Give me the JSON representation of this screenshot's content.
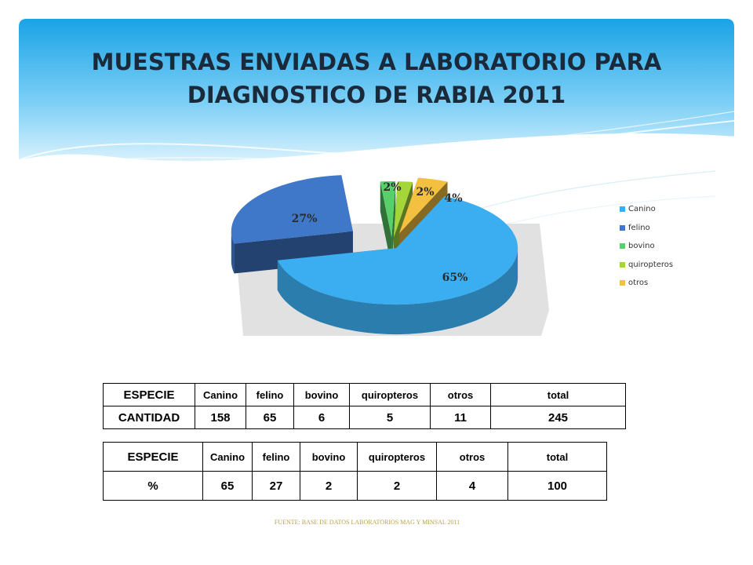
{
  "title": {
    "line1": "MUESTRAS ENVIADAS A LABORATORIO PARA",
    "line2": "DIAGNOSTICO DE RABIA 2011"
  },
  "chart_data": {
    "type": "pie",
    "style": "3d-exploded",
    "categories": [
      "Canino",
      "felino",
      "bovino",
      "quiropteros",
      "otros"
    ],
    "values": [
      65,
      27,
      2,
      2,
      4
    ],
    "labels": [
      "65%",
      "27%",
      "2%",
      "2%",
      "4%"
    ],
    "colors": [
      "#3aaef0",
      "#3f78c9",
      "#57d06a",
      "#a4d63a",
      "#f3c040"
    ],
    "legend_position": "right"
  },
  "legend": {
    "items": [
      {
        "label": "Canino",
        "color": "#3aaef0"
      },
      {
        "label": "felino",
        "color": "#3f78c9"
      },
      {
        "label": "bovino",
        "color": "#57d06a"
      },
      {
        "label": "quiropteros",
        "color": "#a4d63a"
      },
      {
        "label": "otros",
        "color": "#f3c040"
      }
    ]
  },
  "table1": {
    "header": [
      "ESPECIE",
      "Canino",
      "felino",
      "bovino",
      "quiropteros",
      "otros",
      "total"
    ],
    "row": [
      "CANTIDAD",
      "158",
      "65",
      "6",
      "5",
      "11",
      "245"
    ]
  },
  "table2": {
    "header": [
      "ESPECIE",
      "Canino",
      "felino",
      "bovino",
      "quiropteros",
      "otros",
      "total"
    ],
    "row": [
      "%",
      "65",
      "27",
      "2",
      "2",
      "4",
      "100"
    ]
  },
  "source": "FUENTE: BASE DE DATOS LABORATORIOS MAG Y MINSAL 2011",
  "colors": {
    "band_top": "#1aa3e6",
    "band_bottom": "#bfe8fb",
    "title_text": "#1b2a3a"
  }
}
